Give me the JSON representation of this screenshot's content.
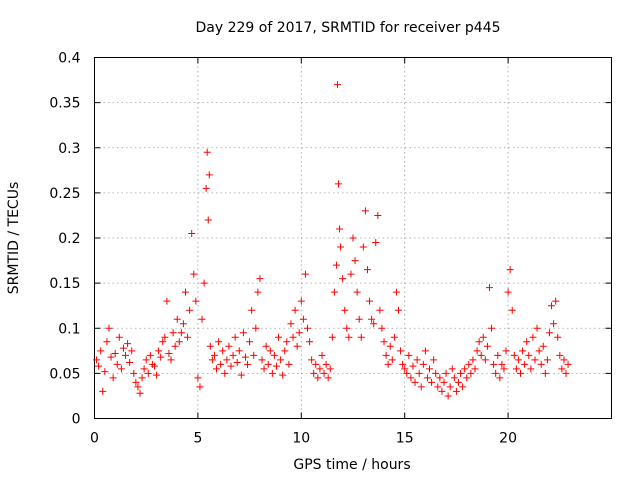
{
  "chart_data": {
    "type": "scatter",
    "title": "Day 229 of 2017, SRMTID for receiver p445",
    "xlabel": "GPS time / hours",
    "ylabel": "SRMTID / TECUs",
    "xlim": [
      0,
      25
    ],
    "ylim": [
      0,
      0.4
    ],
    "xticks": [
      0,
      5,
      10,
      15,
      20
    ],
    "xtick_labels": [
      "0",
      "5",
      "10",
      "15",
      "20"
    ],
    "yticks": [
      0,
      0.05,
      0.1,
      0.15,
      0.2,
      0.25,
      0.3,
      0.35,
      0.4
    ],
    "ytick_labels": [
      "0",
      "0.05",
      "0.1",
      "0.15",
      "0.2",
      "0.25",
      "0.3",
      "0.35",
      "0.4"
    ],
    "grid": true,
    "marker": "+",
    "color": "#ff0000",
    "series": [
      {
        "name": "SRMTID",
        "points": [
          [
            0.1,
            0.065
          ],
          [
            0.2,
            0.058
          ],
          [
            0.3,
            0.075
          ],
          [
            0.4,
            0.03
          ],
          [
            0.5,
            0.052
          ],
          [
            0.6,
            0.085
          ],
          [
            0.7,
            0.1
          ],
          [
            0.8,
            0.068
          ],
          [
            0.9,
            0.045
          ],
          [
            1.0,
            0.072
          ],
          [
            1.1,
            0.06
          ],
          [
            1.2,
            0.09
          ],
          [
            1.3,
            0.055
          ],
          [
            1.4,
            0.078
          ],
          [
            1.5,
            0.07
          ],
          [
            1.6,
            0.083
          ],
          [
            1.7,
            0.062
          ],
          [
            1.8,
            0.075
          ],
          [
            1.9,
            0.05
          ],
          [
            2.0,
            0.04
          ],
          [
            2.1,
            0.035
          ],
          [
            2.2,
            0.028
          ],
          [
            2.3,
            0.045
          ],
          [
            2.4,
            0.055
          ],
          [
            2.5,
            0.065
          ],
          [
            2.6,
            0.05
          ],
          [
            2.7,
            0.07
          ],
          [
            2.8,
            0.06
          ],
          [
            2.9,
            0.058
          ],
          [
            3.0,
            0.048
          ],
          [
            3.1,
            0.075
          ],
          [
            3.2,
            0.068
          ],
          [
            3.3,
            0.085
          ],
          [
            3.4,
            0.09
          ],
          [
            3.5,
            0.13
          ],
          [
            3.6,
            0.072
          ],
          [
            3.7,
            0.065
          ],
          [
            3.8,
            0.095
          ],
          [
            3.9,
            0.08
          ],
          [
            4.0,
            0.11
          ],
          [
            4.1,
            0.085
          ],
          [
            4.2,
            0.095
          ],
          [
            4.3,
            0.105
          ],
          [
            4.4,
            0.14
          ],
          [
            4.5,
            0.09
          ],
          [
            4.6,
            0.12
          ],
          [
            4.7,
            0.205
          ],
          [
            4.8,
            0.16
          ],
          [
            4.9,
            0.13
          ],
          [
            5.0,
            0.045
          ],
          [
            5.1,
            0.035
          ],
          [
            5.2,
            0.11
          ],
          [
            5.3,
            0.15
          ],
          [
            5.4,
            0.255
          ],
          [
            5.45,
            0.295
          ],
          [
            5.5,
            0.22
          ],
          [
            5.55,
            0.27
          ],
          [
            5.6,
            0.08
          ],
          [
            5.7,
            0.065
          ],
          [
            5.8,
            0.07
          ],
          [
            5.9,
            0.055
          ],
          [
            6.0,
            0.085
          ],
          [
            6.1,
            0.06
          ],
          [
            6.2,
            0.075
          ],
          [
            6.3,
            0.05
          ],
          [
            6.4,
            0.065
          ],
          [
            6.5,
            0.08
          ],
          [
            6.6,
            0.058
          ],
          [
            6.7,
            0.07
          ],
          [
            6.8,
            0.09
          ],
          [
            6.9,
            0.062
          ],
          [
            7.0,
            0.075
          ],
          [
            7.1,
            0.048
          ],
          [
            7.2,
            0.095
          ],
          [
            7.3,
            0.068
          ],
          [
            7.4,
            0.06
          ],
          [
            7.5,
            0.085
          ],
          [
            7.6,
            0.12
          ],
          [
            7.7,
            0.07
          ],
          [
            7.8,
            0.1
          ],
          [
            7.9,
            0.14
          ],
          [
            8.0,
            0.155
          ],
          [
            8.1,
            0.065
          ],
          [
            8.2,
            0.055
          ],
          [
            8.3,
            0.08
          ],
          [
            8.4,
            0.06
          ],
          [
            8.5,
            0.075
          ],
          [
            8.6,
            0.05
          ],
          [
            8.7,
            0.07
          ],
          [
            8.8,
            0.058
          ],
          [
            8.9,
            0.09
          ],
          [
            9.0,
            0.065
          ],
          [
            9.1,
            0.048
          ],
          [
            9.2,
            0.075
          ],
          [
            9.3,
            0.085
          ],
          [
            9.4,
            0.06
          ],
          [
            9.5,
            0.105
          ],
          [
            9.6,
            0.09
          ],
          [
            9.7,
            0.12
          ],
          [
            9.8,
            0.08
          ],
          [
            9.9,
            0.095
          ],
          [
            10.0,
            0.13
          ],
          [
            10.1,
            0.11
          ],
          [
            10.2,
            0.16
          ],
          [
            10.3,
            0.1
          ],
          [
            10.4,
            0.085
          ],
          [
            10.5,
            0.065
          ],
          [
            10.6,
            0.05
          ],
          [
            10.7,
            0.06
          ],
          [
            10.8,
            0.045
          ],
          [
            10.9,
            0.055
          ],
          [
            11.0,
            0.07
          ],
          [
            11.1,
            0.05
          ],
          [
            11.2,
            0.06
          ],
          [
            11.3,
            0.045
          ],
          [
            11.4,
            0.055
          ],
          [
            11.5,
            0.09
          ],
          [
            11.6,
            0.14
          ],
          [
            11.7,
            0.17
          ],
          [
            11.75,
            0.37
          ],
          [
            11.8,
            0.26
          ],
          [
            11.85,
            0.21
          ],
          [
            11.9,
            0.19
          ],
          [
            12.0,
            0.155
          ],
          [
            12.1,
            0.12
          ],
          [
            12.2,
            0.1
          ],
          [
            12.3,
            0.09
          ],
          [
            12.4,
            0.16
          ],
          [
            12.5,
            0.2
          ],
          [
            12.6,
            0.175
          ],
          [
            12.7,
            0.14
          ],
          [
            12.8,
            0.11
          ],
          [
            12.9,
            0.09
          ],
          [
            13.0,
            0.19
          ],
          [
            13.1,
            0.23
          ],
          [
            13.2,
            0.165
          ],
          [
            13.3,
            0.13
          ],
          [
            13.4,
            0.11
          ],
          [
            13.5,
            0.105
          ],
          [
            13.6,
            0.195
          ],
          [
            13.7,
            0.225
          ],
          [
            13.8,
            0.12
          ],
          [
            13.9,
            0.1
          ],
          [
            14.0,
            0.085
          ],
          [
            14.1,
            0.07
          ],
          [
            14.2,
            0.06
          ],
          [
            14.3,
            0.08
          ],
          [
            14.4,
            0.065
          ],
          [
            14.5,
            0.09
          ],
          [
            14.6,
            0.14
          ],
          [
            14.7,
            0.12
          ],
          [
            14.8,
            0.075
          ],
          [
            14.9,
            0.06
          ],
          [
            15.0,
            0.055
          ],
          [
            15.1,
            0.05
          ],
          [
            15.2,
            0.07
          ],
          [
            15.3,
            0.045
          ],
          [
            15.4,
            0.058
          ],
          [
            15.5,
            0.04
          ],
          [
            15.6,
            0.065
          ],
          [
            15.7,
            0.05
          ],
          [
            15.8,
            0.035
          ],
          [
            15.9,
            0.06
          ],
          [
            16.0,
            0.075
          ],
          [
            16.1,
            0.045
          ],
          [
            16.2,
            0.055
          ],
          [
            16.3,
            0.04
          ],
          [
            16.4,
            0.065
          ],
          [
            16.5,
            0.05
          ],
          [
            16.6,
            0.035
          ],
          [
            16.7,
            0.045
          ],
          [
            16.8,
            0.03
          ],
          [
            16.9,
            0.04
          ],
          [
            17.0,
            0.05
          ],
          [
            17.1,
            0.025
          ],
          [
            17.2,
            0.035
          ],
          [
            17.3,
            0.055
          ],
          [
            17.4,
            0.045
          ],
          [
            17.5,
            0.03
          ],
          [
            17.6,
            0.04
          ],
          [
            17.7,
            0.05
          ],
          [
            17.8,
            0.035
          ],
          [
            17.9,
            0.055
          ],
          [
            18.0,
            0.045
          ],
          [
            18.1,
            0.06
          ],
          [
            18.2,
            0.05
          ],
          [
            18.3,
            0.065
          ],
          [
            18.4,
            0.055
          ],
          [
            18.5,
            0.075
          ],
          [
            18.6,
            0.085
          ],
          [
            18.7,
            0.07
          ],
          [
            18.8,
            0.09
          ],
          [
            18.9,
            0.065
          ],
          [
            19.0,
            0.08
          ],
          [
            19.1,
            0.145
          ],
          [
            19.2,
            0.1
          ],
          [
            19.3,
            0.06
          ],
          [
            19.4,
            0.05
          ],
          [
            19.5,
            0.07
          ],
          [
            19.6,
            0.045
          ],
          [
            19.7,
            0.06
          ],
          [
            19.8,
            0.055
          ],
          [
            19.9,
            0.075
          ],
          [
            20.0,
            0.14
          ],
          [
            20.1,
            0.165
          ],
          [
            20.2,
            0.12
          ],
          [
            20.3,
            0.07
          ],
          [
            20.4,
            0.055
          ],
          [
            20.5,
            0.065
          ],
          [
            20.6,
            0.05
          ],
          [
            20.7,
            0.075
          ],
          [
            20.8,
            0.06
          ],
          [
            20.9,
            0.085
          ],
          [
            21.0,
            0.07
          ],
          [
            21.1,
            0.055
          ],
          [
            21.2,
            0.09
          ],
          [
            21.3,
            0.065
          ],
          [
            21.4,
            0.1
          ],
          [
            21.5,
            0.075
          ],
          [
            21.6,
            0.06
          ],
          [
            21.7,
            0.08
          ],
          [
            21.8,
            0.05
          ],
          [
            21.9,
            0.065
          ],
          [
            22.0,
            0.095
          ],
          [
            22.1,
            0.125
          ],
          [
            22.2,
            0.105
          ],
          [
            22.3,
            0.13
          ],
          [
            22.4,
            0.09
          ],
          [
            22.5,
            0.07
          ],
          [
            22.6,
            0.055
          ],
          [
            22.7,
            0.065
          ],
          [
            22.8,
            0.05
          ],
          [
            22.9,
            0.06
          ]
        ]
      }
    ]
  }
}
